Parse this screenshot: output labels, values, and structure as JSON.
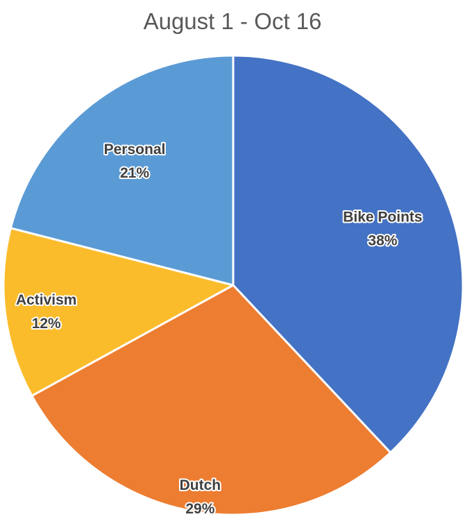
{
  "chart_data": {
    "type": "pie",
    "title": "August 1 - Oct 16",
    "slices": [
      {
        "label": "Bike Points",
        "value": 38,
        "value_label": "38%",
        "color": "#4472C4"
      },
      {
        "label": "Dutch",
        "value": 29,
        "value_label": "29%",
        "color": "#ED7D31"
      },
      {
        "label": "Activism",
        "value": 12,
        "value_label": "12%",
        "color": "#FBBC2C"
      },
      {
        "label": "Personal",
        "value": 21,
        "value_label": "21%",
        "color": "#5B9BD5"
      }
    ],
    "start_angle": "12 o'clock",
    "direction": "clockwise",
    "legend": "none",
    "data_labels": "category name and percentage, inside slices"
  }
}
